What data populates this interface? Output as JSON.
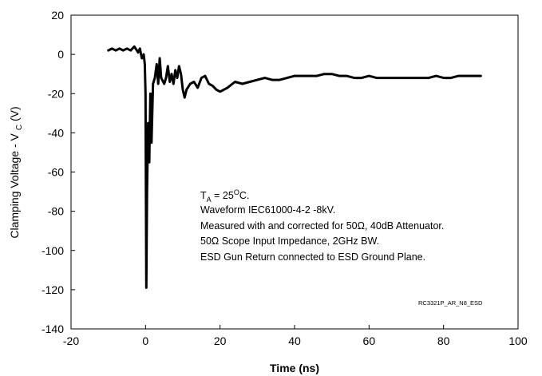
{
  "chart_data": {
    "type": "line",
    "xlabel": "Time (ns)",
    "ylabel_main": "Clamping Voltage - V",
    "ylabel_sub": "C",
    "ylabel_unit": " (V)",
    "xlim": [
      -20,
      100
    ],
    "ylim": [
      -140,
      20
    ],
    "x_ticks": [
      -20,
      0,
      20,
      40,
      60,
      80,
      100
    ],
    "y_ticks": [
      20,
      0,
      -20,
      -40,
      -60,
      -80,
      -100,
      -120,
      -140
    ],
    "grid": false,
    "series": [
      {
        "color": "#000000",
        "x": [
          -10,
          -9,
          -8,
          -7,
          -6,
          -5,
          -4,
          -3,
          -2,
          -1.5,
          -1.2,
          -1,
          -0.5,
          -0.2,
          0,
          0.2,
          0.4,
          0.7,
          1.0,
          1.3,
          1.6,
          2.0,
          2.5,
          3.0,
          3.4,
          3.8,
          4.2,
          5.0,
          5.5,
          6.0,
          6.5,
          7.0,
          7.5,
          8.0,
          8.5,
          9.0,
          9.5,
          10.0,
          10.5,
          11.0,
          12.0,
          13.0,
          14.0,
          15.0,
          16.0,
          17.0,
          18.0,
          19.0,
          20.0,
          22,
          24,
          26,
          28,
          30,
          32,
          34,
          36,
          38,
          40,
          42,
          44,
          46,
          48,
          50,
          52,
          54,
          56,
          58,
          60,
          62,
          64,
          66,
          68,
          70,
          72,
          74,
          76,
          78,
          80,
          82,
          84,
          86,
          88,
          90
        ],
        "y": [
          2,
          3,
          2,
          3,
          2,
          3,
          2,
          4,
          1,
          3,
          0,
          -2,
          0,
          -5,
          -20,
          -119,
          -70,
          -35,
          -55,
          -20,
          -45,
          -15,
          -12,
          -5,
          -15,
          -2,
          -12,
          -15,
          -12,
          -6,
          -14,
          -10,
          -15,
          -8,
          -12,
          -6,
          -10,
          -18,
          -22,
          -18,
          -15,
          -14,
          -17,
          -12,
          -11,
          -15,
          -16,
          -18,
          -19,
          -17,
          -14,
          -15,
          -14,
          -13,
          -12,
          -13,
          -13,
          -12,
          -11,
          -11,
          -11,
          -11,
          -10,
          -10,
          -11,
          -11,
          -12,
          -12,
          -11,
          -12,
          -12,
          -12,
          -12,
          -12,
          -12,
          -12,
          -12,
          -11,
          -12,
          -12,
          -11,
          -11,
          -11,
          -11
        ]
      }
    ]
  },
  "annotation": {
    "lines": [
      {
        "main": "T",
        "sub": "A",
        "rest": " = 25",
        "sup": "O",
        "end": "C."
      },
      "Waveform IEC61000-4-2 -8kV.",
      "Measured with and corrected for 50Ω, 40dB Attenuator.",
      "50Ω Scope Input Impedance, 2GHz BW.",
      "ESD Gun Return connected to ESD Ground Plane."
    ],
    "code": "RC3321P_AR_N8_ESD"
  }
}
